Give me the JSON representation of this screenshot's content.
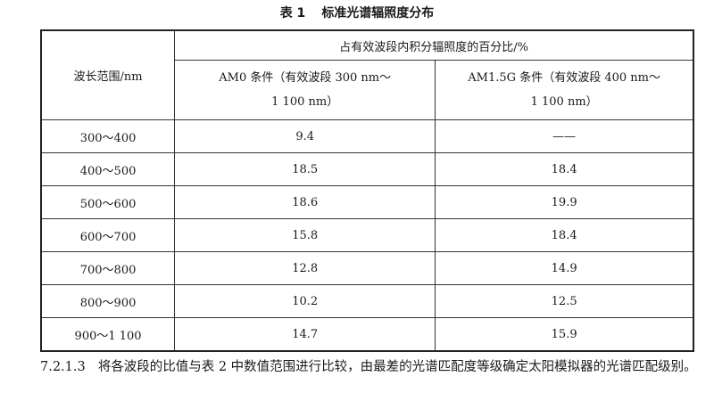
{
  "caption": {
    "number": "表 1",
    "title": "标准光谱辐照度分布"
  },
  "table": {
    "col1_header": "波长范围/nm",
    "group_header": "占有效波段内积分辐照度的百分比/%",
    "sub_headers": [
      {
        "line1": "AM0 条件（有效波段 300 nm～",
        "line2": "1 100 nm）"
      },
      {
        "line1": "AM1.5G 条件（有效波段 400 nm～",
        "line2": "1 100 nm）"
      }
    ],
    "rows": [
      {
        "range": "300～400",
        "am0": "9.4",
        "am15g": "——"
      },
      {
        "range": "400～500",
        "am0": "18.5",
        "am15g": "18.4"
      },
      {
        "range": "500～600",
        "am0": "18.6",
        "am15g": "19.9"
      },
      {
        "range": "600～700",
        "am0": "15.8",
        "am15g": "18.4"
      },
      {
        "range": "700～800",
        "am0": "12.8",
        "am15g": "14.9"
      },
      {
        "range": "800～900",
        "am0": "10.2",
        "am15g": "12.5"
      },
      {
        "range": "900～1 100",
        "am0": "14.7",
        "am15g": "15.9"
      }
    ]
  },
  "footer": {
    "section": "7.2.1.3",
    "text": "将各波段的比值与表 2 中数值范围进行比较，由最差的光谱匹配度等级确定太阳模拟器的光谱匹配级别。"
  }
}
